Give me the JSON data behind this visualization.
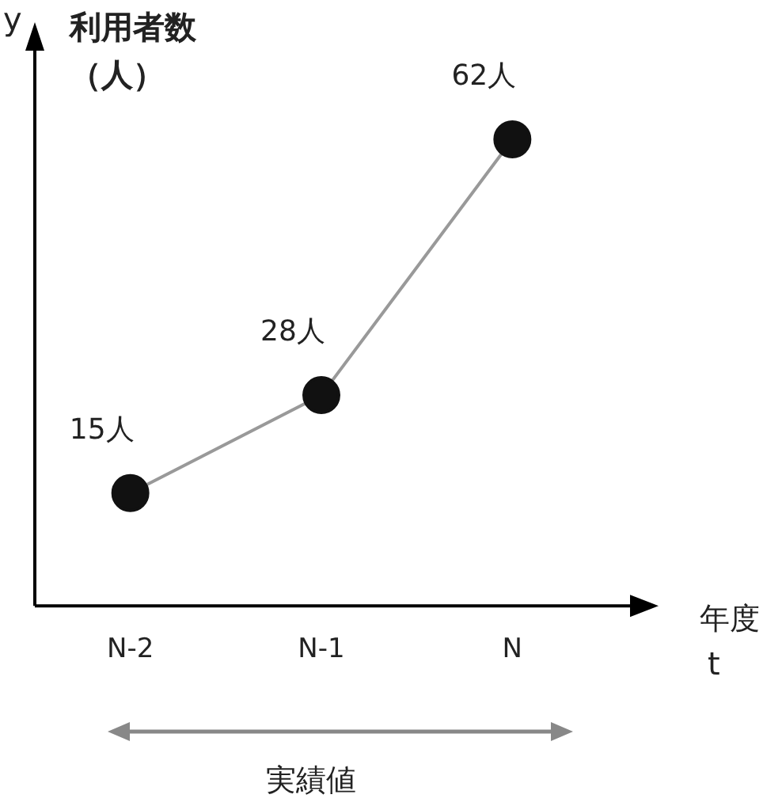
{
  "chart_data": {
    "type": "line",
    "ylabel": "利用者数（人）",
    "xlabel": "年度",
    "categories": [
      "N-2",
      "N-1",
      "N"
    ],
    "values": [
      15,
      28,
      62
    ],
    "value_labels": [
      "15人",
      "28人",
      "62人"
    ],
    "color": "#999999",
    "marker": "circle",
    "line_style": "solid",
    "grid": false,
    "legend": false,
    "tick_labels": "x",
    "annotations": [
      "y",
      "t",
      "実績値"
    ]
  }
}
